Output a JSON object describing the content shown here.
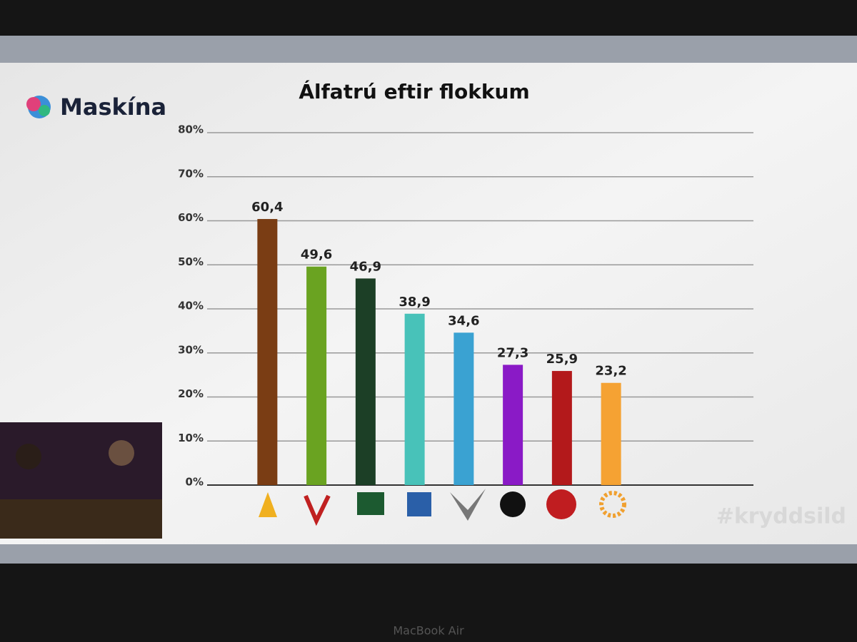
{
  "brand": "Maskína",
  "watermark": "#kryddsild",
  "device_label": "MacBook Air",
  "chart_data": {
    "type": "bar",
    "title": "Álfatrú eftir flokkum",
    "categories": [
      null,
      null,
      null,
      null,
      null,
      null,
      null,
      null
    ],
    "values": [
      60.4,
      49.6,
      46.9,
      38.9,
      34.6,
      27.3,
      25.9,
      23.2
    ],
    "value_labels": [
      "60,4",
      "49,6",
      "46,9",
      "38,9",
      "34,6",
      "27,3",
      "25,9",
      "23,2"
    ],
    "colors": [
      "#7a3d14",
      "#6aa321",
      "#1c3f26",
      "#48c2b9",
      "#3aa2d2",
      "#8a1ac6",
      "#b3191b",
      "#f5a233"
    ],
    "ylim": [
      0,
      80
    ],
    "yticks": [
      {
        "value": 0,
        "label": "0%"
      },
      {
        "value": 10,
        "label": "10%"
      },
      {
        "value": 20,
        "label": "20%"
      },
      {
        "value": 30,
        "label": "30%"
      },
      {
        "value": 40,
        "label": "40%"
      },
      {
        "value": 50,
        "label": "50%"
      },
      {
        "value": 60,
        "label": "60%"
      },
      {
        "value": 70,
        "label": "70%"
      },
      {
        "value": 80,
        "label": "80%"
      }
    ],
    "grid": true
  }
}
